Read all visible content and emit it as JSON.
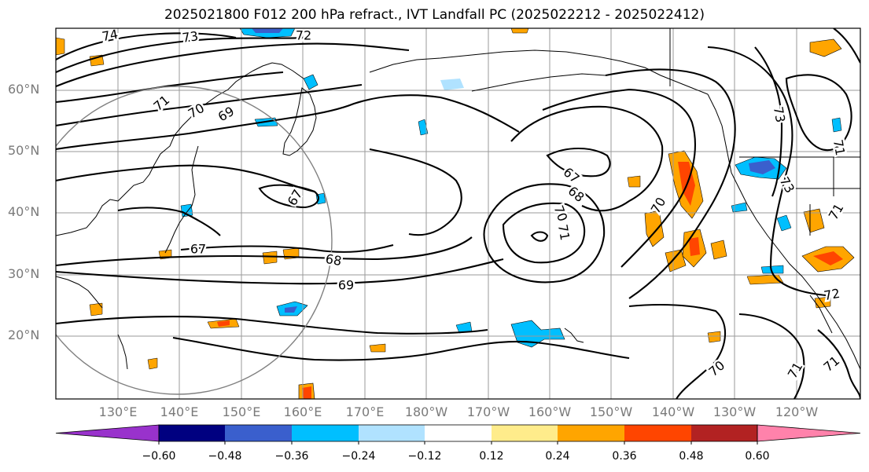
{
  "title": "2025021800 F012 200 hPa refract., IVT Landfall PC (2025022212 - 2025022412)",
  "lat_labels": [
    "60°N",
    "50°N",
    "40°N",
    "30°N",
    "20°N"
  ],
  "lon_labels": [
    "130°E",
    "140°E",
    "150°E",
    "160°E",
    "170°E",
    "180°W",
    "170°W",
    "160°W",
    "150°W",
    "140°W",
    "130°W",
    "120°W"
  ],
  "contour_labels": [
    "74",
    "73",
    "72",
    "71",
    "70",
    "69",
    "67",
    "67",
    "68",
    "69",
    "67",
    "68",
    "70",
    "71",
    "70",
    "71",
    "72",
    "73",
    "71",
    "70",
    "71",
    "71",
    "73"
  ],
  "colorbar": {
    "tick_labels": [
      "−0.60",
      "−0.48",
      "−0.36",
      "−0.24",
      "−0.12",
      "0.12",
      "0.24",
      "0.36",
      "0.48",
      "0.60"
    ],
    "colors": [
      "#9932cc",
      "#000080",
      "#3a5fcd",
      "#00bfff",
      "#b0e2ff",
      "#ffffff",
      "#ffec8b",
      "#ffa500",
      "#ff4500",
      "#b22222",
      "#ff82ab"
    ]
  }
}
